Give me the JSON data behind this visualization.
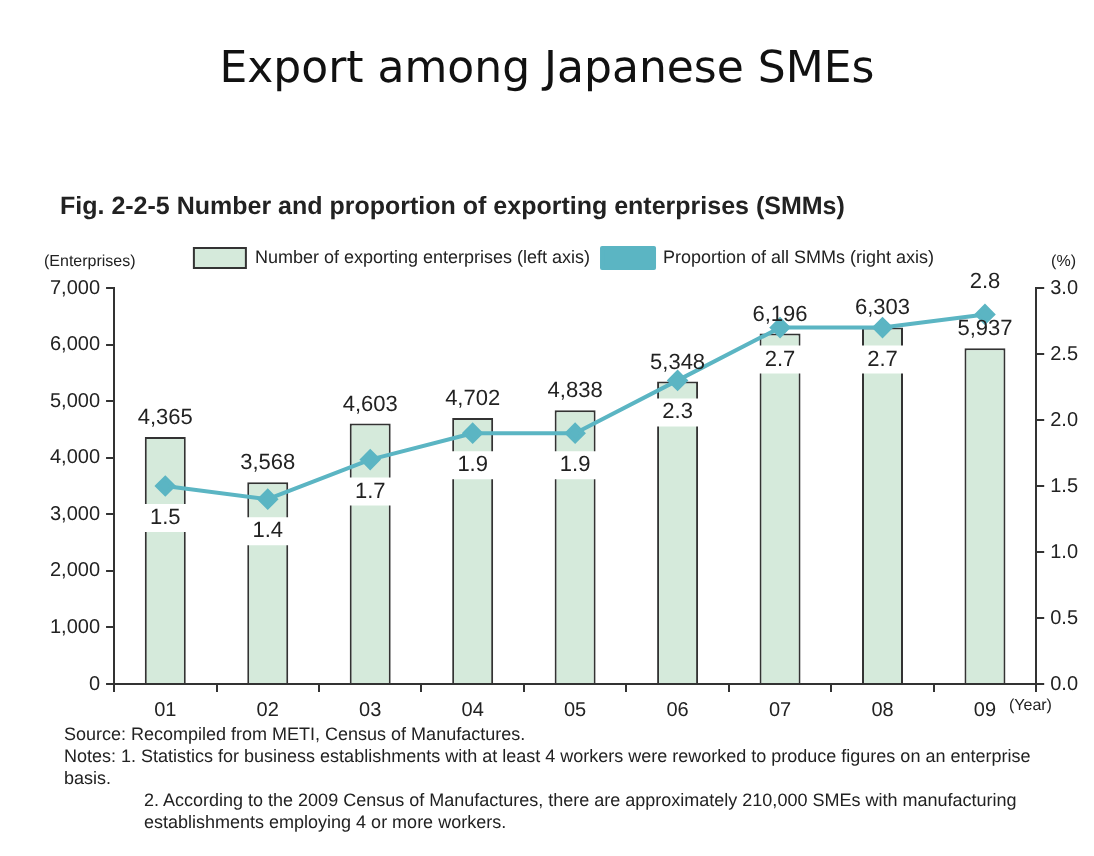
{
  "chart_data": {
    "type": "bar",
    "title": "Export among Japanese SMEs",
    "subtitle": "Fig. 2-2-5   Number and proportion of exporting enterprises (SMMs)",
    "xlabel": "(Year)",
    "ylabel": "(Enterprises)",
    "y2label": "(%)",
    "categories": [
      "01",
      "02",
      "03",
      "04",
      "05",
      "06",
      "07",
      "08",
      "09"
    ],
    "series": [
      {
        "name": "Number of exporting enterprises (left axis)",
        "color": "#d5eadb",
        "values": [
          4365,
          3568,
          4603,
          4702,
          4838,
          5348,
          6196,
          6303,
          5937
        ],
        "value_labels": [
          "4,365",
          "3,568",
          "4,603",
          "4,702",
          "4,838",
          "5,348",
          "6,196",
          "6,303",
          "5,937"
        ]
      },
      {
        "name": "Proportion of all SMMs (right axis)",
        "type": "line",
        "axis": "y2",
        "color": "#5bb5c3",
        "values": [
          1.5,
          1.4,
          1.7,
          1.9,
          1.9,
          2.3,
          2.7,
          2.7,
          2.8
        ]
      }
    ],
    "ylim": [
      0,
      7000
    ],
    "yticks": [
      0,
      {
        "value": 1000,
        "label": "1,000"
      },
      {
        "value": 2000,
        "label": "2,000"
      },
      {
        "value": 3000,
        "label": "3,000"
      },
      {
        "value": 4000,
        "label": "4,000"
      },
      {
        "value": 5000,
        "label": "5,000"
      },
      {
        "value": 6000,
        "label": "6,000"
      },
      {
        "value": 7000,
        "label": "7,000"
      }
    ],
    "y2lim": [
      0,
      3
    ],
    "y2ticks": [
      {
        "value": 0,
        "label": "0.0"
      },
      {
        "value": 0.5,
        "label": "0.5"
      },
      {
        "value": 1,
        "label": "1.0"
      },
      {
        "value": 1.5,
        "label": "1.5"
      },
      {
        "value": 2,
        "label": "2.0"
      },
      {
        "value": 2.5,
        "label": "2.5"
      },
      {
        "value": 3,
        "label": "3.0"
      }
    ],
    "data_labels": true,
    "legend": "top",
    "marker": "diamond",
    "grid": false,
    "annotations": [
      "Source:   Recompiled from METI, Census of Manufactures.",
      "Notes:   1. Statistics for business establishments with at least 4 workers were reworked to produce figures on an enterprise basis.",
      "2. According to the 2009 Census of Manufactures, there are approximately 210,000 SMEs with manufacturing establishments employing 4 or more workers."
    ]
  }
}
